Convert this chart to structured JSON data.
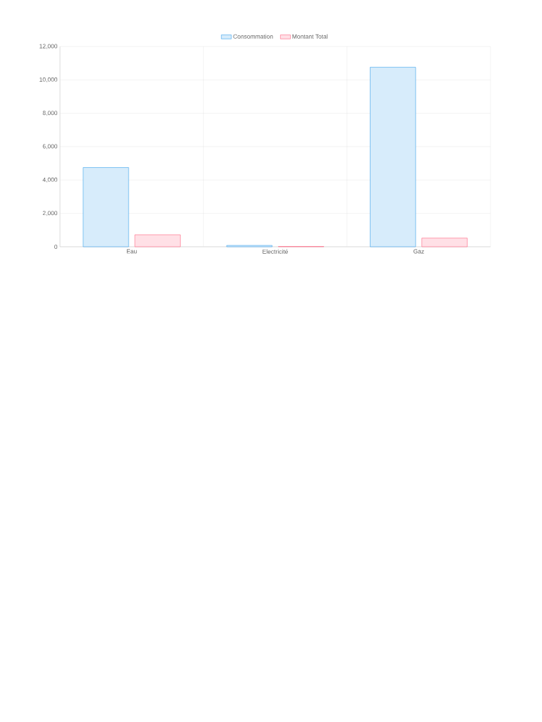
{
  "chart_data": {
    "type": "bar",
    "categories": [
      "Eau",
      "Electricité",
      "Gaz"
    ],
    "series": [
      {
        "name": "Consommation",
        "color": "#d7ecfb",
        "values": [
          4750,
          80,
          10760
        ]
      },
      {
        "name": "Montant Total",
        "color": "#ffe0e6",
        "values": [
          720,
          20,
          520
        ]
      }
    ],
    "ylim": [
      0,
      12000
    ],
    "yticks": [
      {
        "value": 0,
        "label": "0"
      },
      {
        "value": 2000,
        "label": "2,000"
      },
      {
        "value": 4000,
        "label": "4,000"
      },
      {
        "value": 6000,
        "label": "6,000"
      },
      {
        "value": 8000,
        "label": "8,000"
      },
      {
        "value": 10000,
        "label": "10,000"
      },
      {
        "value": 12000,
        "label": "12,000"
      }
    ],
    "grid": true,
    "legend": "top"
  }
}
